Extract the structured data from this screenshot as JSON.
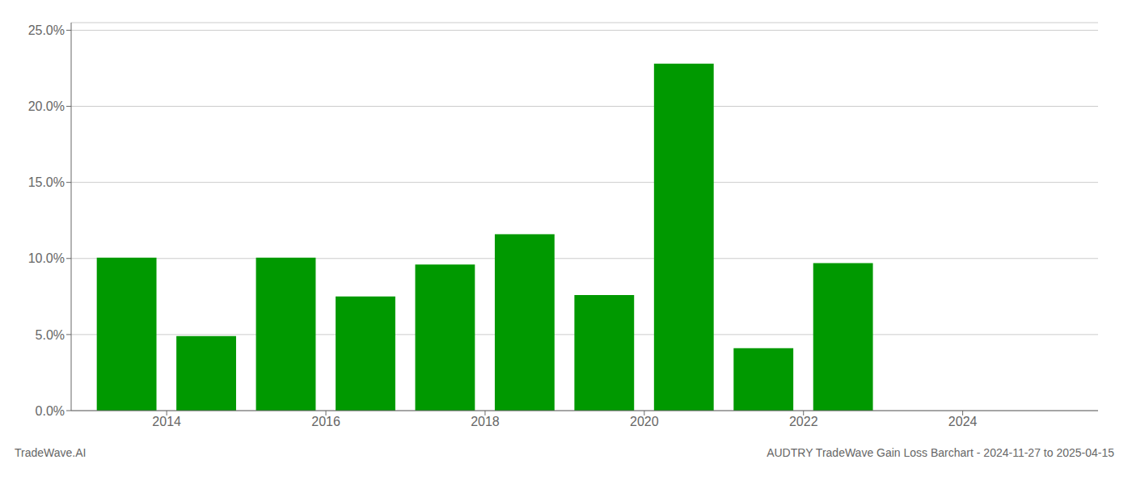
{
  "chart_data": {
    "type": "bar",
    "title": "AUDTRY TradeWave Gain Loss Barchart - 2024-11-27 to 2025-04-15",
    "annotations": [
      "TradeWave.AI"
    ],
    "x": [
      2013,
      2014,
      2015,
      2016,
      2017,
      2018,
      2019,
      2020,
      2021,
      2022,
      2023,
      2024
    ],
    "values": [
      0.1005,
      0.049,
      0.1005,
      0.075,
      0.096,
      0.116,
      0.076,
      0.228,
      0.041,
      0.097,
      0.0,
      0.0
    ],
    "color": "#009900",
    "xlim": [
      2012.3,
      2025.2
    ],
    "xticks": [
      {
        "value": 2013.5,
        "label": "2014"
      },
      {
        "value": 2015.5,
        "label": "2016"
      },
      {
        "value": 2017.5,
        "label": "2018"
      },
      {
        "value": 2019.5,
        "label": "2020"
      },
      {
        "value": 2021.5,
        "label": "2022"
      },
      {
        "value": 2023.5,
        "label": "2024"
      }
    ],
    "ylim": [
      0,
      0.255
    ],
    "yticks": [
      {
        "value": 0.0,
        "label": "0.0%"
      },
      {
        "value": 0.05,
        "label": "5.0%"
      },
      {
        "value": 0.1,
        "label": "10.0%"
      },
      {
        "value": 0.15,
        "label": "15.0%"
      },
      {
        "value": 0.2,
        "label": "20.0%"
      },
      {
        "value": 0.25,
        "label": "25.0%"
      }
    ],
    "grid": true
  }
}
